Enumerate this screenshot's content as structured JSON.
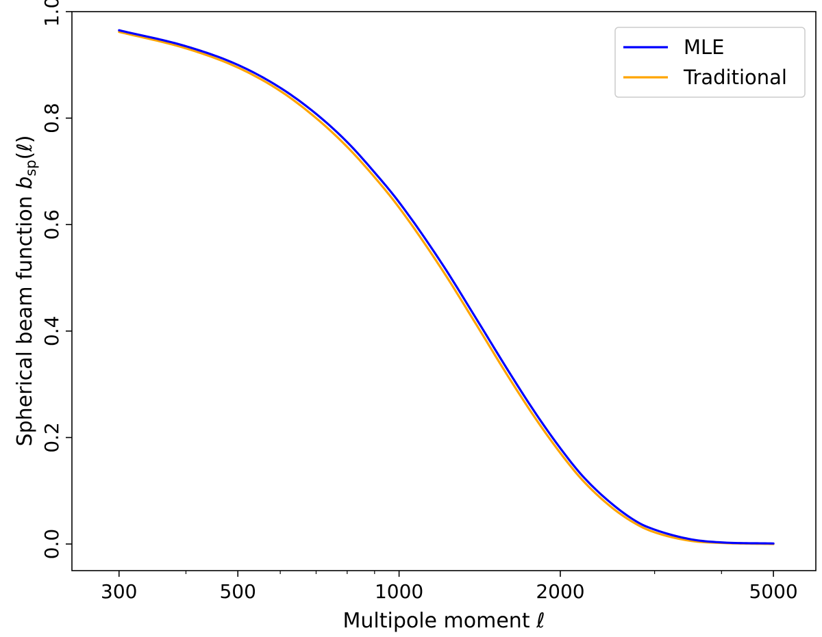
{
  "chart_data": {
    "type": "line",
    "xscale": "log",
    "xlim": [
      245,
      6000
    ],
    "ylim": [
      -0.05,
      1.0
    ],
    "xlabel": "Multipole moment ℓ",
    "ylabel_prefix": "Spherical beam function ",
    "ylabel_symbol": "b",
    "ylabel_subscript": "sp",
    "ylabel_suffix": "(ℓ)",
    "xticks": [
      300,
      500,
      1000,
      2000,
      5000
    ],
    "xtick_labels": [
      "300",
      "500",
      "1000",
      "2000",
      "5000"
    ],
    "xminor_ticks": [
      400,
      600,
      700,
      800,
      900,
      3000,
      4000
    ],
    "yticks": [
      0.0,
      0.2,
      0.4,
      0.6,
      0.8,
      1.0
    ],
    "ytick_labels": [
      "0.0",
      "0.2",
      "0.4",
      "0.6",
      "0.8",
      "1.0"
    ],
    "grid": false,
    "legend_position": "top-right",
    "x": [
      300,
      400,
      500,
      600,
      700,
      800,
      900,
      1000,
      1200,
      1400,
      1600,
      1800,
      2000,
      2200,
      2500,
      2800,
      3000,
      3500,
      4000,
      5000
    ],
    "series": [
      {
        "name": "MLE",
        "color": "#0000ff",
        "values": [
          0.965,
          0.935,
          0.9,
          0.857,
          0.808,
          0.755,
          0.698,
          0.642,
          0.528,
          0.42,
          0.325,
          0.245,
          0.18,
          0.128,
          0.075,
          0.04,
          0.027,
          0.009,
          0.003,
          0.001
        ]
      },
      {
        "name": "Traditional",
        "color": "#ffa500",
        "values": [
          0.962,
          0.931,
          0.895,
          0.851,
          0.8,
          0.746,
          0.689,
          0.632,
          0.517,
          0.409,
          0.314,
          0.235,
          0.171,
          0.12,
          0.068,
          0.035,
          0.022,
          0.006,
          0.002,
          0.0
        ]
      }
    ]
  }
}
